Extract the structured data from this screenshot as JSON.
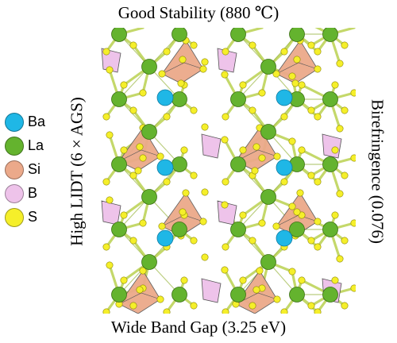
{
  "labels": {
    "top": "Good Stability (880 ℃)",
    "bottom": "Wide Band Gap (3.25 eV)",
    "left": "High LIDT (6 × AGS)",
    "right": "Birefringence (0.076)"
  },
  "legend": [
    {
      "label": "Ba",
      "color": "#1fb7e6"
    },
    {
      "label": "La",
      "color": "#64b32e"
    },
    {
      "label": "Si",
      "color": "#eba98a"
    },
    {
      "label": "B",
      "color": "#eec3ea"
    },
    {
      "label": "S",
      "color": "#f5ef2a"
    }
  ],
  "colors": {
    "bond": "#c4d86a",
    "bond_dark": "#8fae2c",
    "tetra_si": "#eba98a",
    "tetra_b": "#eec3ea",
    "outline": "#555555"
  }
}
